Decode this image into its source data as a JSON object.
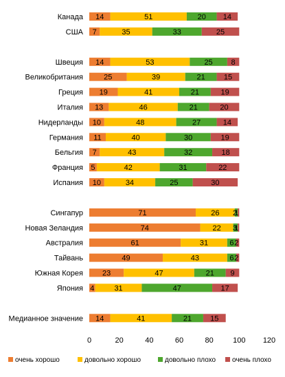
{
  "chart_data": {
    "type": "bar",
    "orientation": "horizontal",
    "stacked": true,
    "groups": [
      [
        "Канада",
        "США"
      ],
      [
        "Швеция",
        "Великобритания",
        "Греция",
        "Италия",
        "Нидерланды",
        "Германия",
        "Бельгия",
        "Франция",
        "Испания"
      ],
      [
        "Сингапур",
        "Новая Зеландия",
        "Австралия",
        "Тайвань",
        "Южная Корея",
        "Япония"
      ],
      [
        "Медианное значение"
      ]
    ],
    "series": [
      {
        "name": "очень хорошо",
        "color": "#ED7D31",
        "values": [
          14,
          7,
          14,
          25,
          19,
          13,
          10,
          11,
          7,
          5,
          10,
          71,
          74,
          61,
          49,
          23,
          4,
          14
        ]
      },
      {
        "name": "довольно хорошо",
        "color": "#FFC000",
        "values": [
          51,
          35,
          53,
          39,
          41,
          46,
          48,
          40,
          43,
          42,
          34,
          26,
          22,
          31,
          43,
          47,
          31,
          41
        ]
      },
      {
        "name": "довольно плохо",
        "color": "#4EA72E",
        "values": [
          20,
          33,
          25,
          21,
          21,
          21,
          27,
          30,
          32,
          31,
          25,
          2,
          3,
          6,
          6,
          21,
          47,
          21
        ]
      },
      {
        "name": "очень плохо",
        "color": "#C0504D",
        "values": [
          14,
          25,
          8,
          15,
          19,
          20,
          14,
          19,
          18,
          22,
          30,
          1,
          1,
          2,
          2,
          9,
          17,
          15
        ]
      }
    ],
    "data_labels": [
      [
        "14",
        "7",
        "14",
        "25",
        "19",
        "13",
        "10",
        "11",
        "7",
        "5",
        "10",
        "71",
        "74",
        "61",
        "49",
        "23",
        "4",
        "14"
      ],
      [
        "51",
        "35",
        "53",
        "39",
        "41",
        "46",
        "48",
        "40",
        "43",
        "42",
        "34",
        "26",
        "22",
        "31",
        "43",
        "47",
        "31",
        "41"
      ],
      [
        "20",
        "33",
        "25",
        "21",
        "21",
        "21",
        "27",
        "30",
        "32",
        "31",
        "25",
        "2",
        "3",
        "6",
        "6",
        "21",
        "47",
        "21"
      ],
      [
        "14",
        "25",
        "8",
        "15",
        "19",
        "20",
        "14",
        "19",
        "18",
        "22",
        "30",
        "1",
        "1",
        "2",
        "2",
        "9",
        "17",
        "15"
      ]
    ],
    "xlim": [
      0,
      120
    ],
    "xticks": [
      0,
      20,
      40,
      60,
      80,
      100,
      120
    ],
    "grid": false,
    "legend_position": "bottom"
  }
}
